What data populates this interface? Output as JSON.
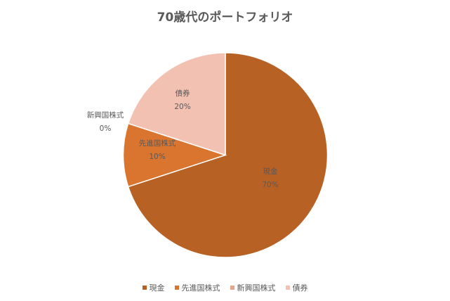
{
  "chart_data": {
    "type": "pie",
    "title": "70歳代のポートフォリオ",
    "categories": [
      "現金",
      "先進国株式",
      "新興国株式",
      "債券"
    ],
    "values": [
      70,
      10,
      0,
      20
    ],
    "value_labels": [
      "70%",
      "10%",
      "0%",
      "20%"
    ],
    "colors": [
      "#B86124",
      "#DA7530",
      "#E8A48A",
      "#F2C1B2"
    ],
    "legend_position": "bottom",
    "start_angle": "12 o'clock, clockwise"
  },
  "labels": {
    "cash": {
      "name": "現金",
      "pct": "70%"
    },
    "developed": {
      "name": "先進国株式",
      "pct": "10%"
    },
    "emerging": {
      "name": "新興国株式",
      "pct": "0%"
    },
    "bonds": {
      "name": "債券",
      "pct": "20%"
    }
  },
  "legend": [
    {
      "label": "現金",
      "color": "#B86124"
    },
    {
      "label": "先進国株式",
      "color": "#DA7530"
    },
    {
      "label": "新興国株式",
      "color": "#E8A48A"
    },
    {
      "label": "債券",
      "color": "#F2C1B2"
    }
  ]
}
